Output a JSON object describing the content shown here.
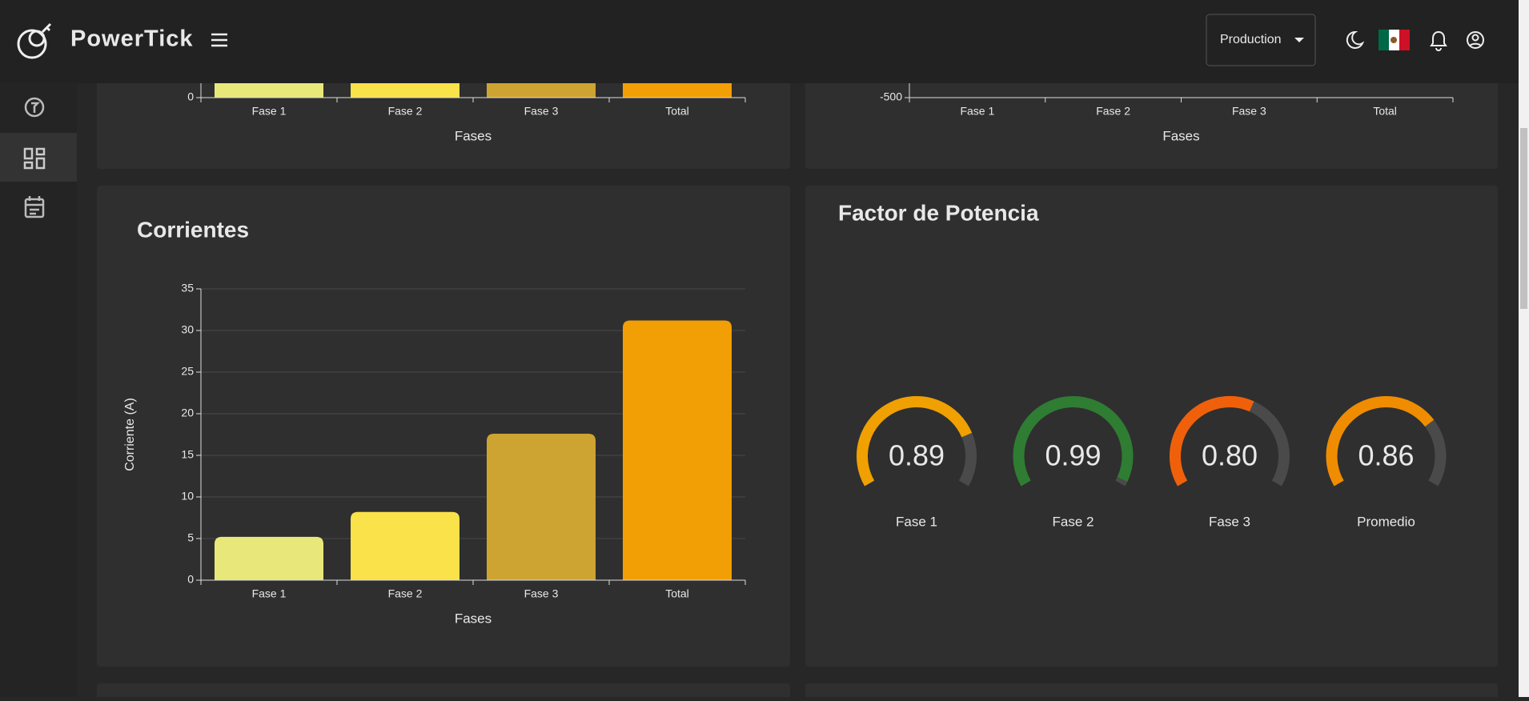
{
  "header": {
    "brand": "PowerTick",
    "environment": "Production"
  },
  "chart_data": [
    {
      "type": "bar",
      "categories": [
        "Fase 1",
        "Fase 2",
        "Fase 3",
        "Total"
      ],
      "x_label": "Fases",
      "yticks": [
        0
      ],
      "colors": [
        "#e8e87a",
        "#f9e24a",
        "#cda332",
        "#f29e05"
      ]
    },
    {
      "type": "bar",
      "categories": [
        "Fase 1",
        "Fase 2",
        "Fase 3",
        "Total"
      ],
      "x_label": "Fases",
      "yticks": [
        -500
      ]
    },
    {
      "type": "bar",
      "title": "Corrientes",
      "categories": [
        "Fase 1",
        "Fase 2",
        "Fase 3",
        "Total"
      ],
      "values": [
        5.2,
        8.2,
        17.6,
        31.2
      ],
      "colors": [
        "#e8e87a",
        "#f9e24a",
        "#cda332",
        "#f29e05"
      ],
      "x_label": "Fases",
      "y_label": "Corriente (A)",
      "ylim": [
        0,
        35
      ],
      "yticks": [
        0,
        5,
        10,
        15,
        20,
        25,
        30,
        35
      ],
      "grid": true
    },
    {
      "type": "gauge",
      "title": "Factor de Potencia",
      "categories": [
        "Fase 1",
        "Fase 2",
        "Fase 3",
        "Promedio"
      ],
      "values": [
        0.89,
        0.99,
        0.8,
        0.86
      ],
      "value_labels": [
        "0.89",
        "0.99",
        "0.80",
        "0.86"
      ],
      "colors": [
        "#f0a000",
        "#2e7d32",
        "#f0600a",
        "#f08c00"
      ],
      "lim": [
        0.5,
        1
      ]
    }
  ]
}
